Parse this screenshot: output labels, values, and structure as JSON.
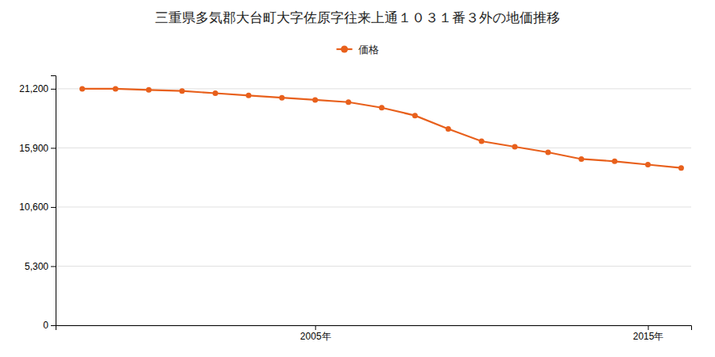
{
  "chart_data": {
    "type": "line",
    "title": "三重県多気郡大台町大字佐原字往来上通１０３１番３外の地価推移",
    "x": [
      1998,
      1999,
      2000,
      2001,
      2002,
      2003,
      2004,
      2005,
      2006,
      2007,
      2008,
      2009,
      2010,
      2011,
      2012,
      2013,
      2014,
      2015,
      2016
    ],
    "series": [
      {
        "name": "価格",
        "color": "#e8601c",
        "marker": "circle",
        "values": [
          21200,
          21200,
          21100,
          21000,
          20800,
          20600,
          20400,
          20200,
          20000,
          19500,
          18800,
          17600,
          16500,
          16000,
          15500,
          14900,
          14700,
          14400,
          14100
        ]
      }
    ],
    "xlim": [
      1997.2,
      2016.3
    ],
    "xticks": [
      {
        "value": 2005,
        "label": "2005年"
      },
      {
        "value": 2015,
        "label": "2015年"
      }
    ],
    "ylim": [
      0,
      22400
    ],
    "yticks": [
      0,
      {
        "value": 5300,
        "label": "5,300"
      },
      {
        "value": 10600,
        "label": "10,600"
      },
      {
        "value": 15900,
        "label": "15,900"
      },
      {
        "value": 21200,
        "label": "21,200"
      }
    ],
    "grid": true,
    "legend": "top"
  }
}
